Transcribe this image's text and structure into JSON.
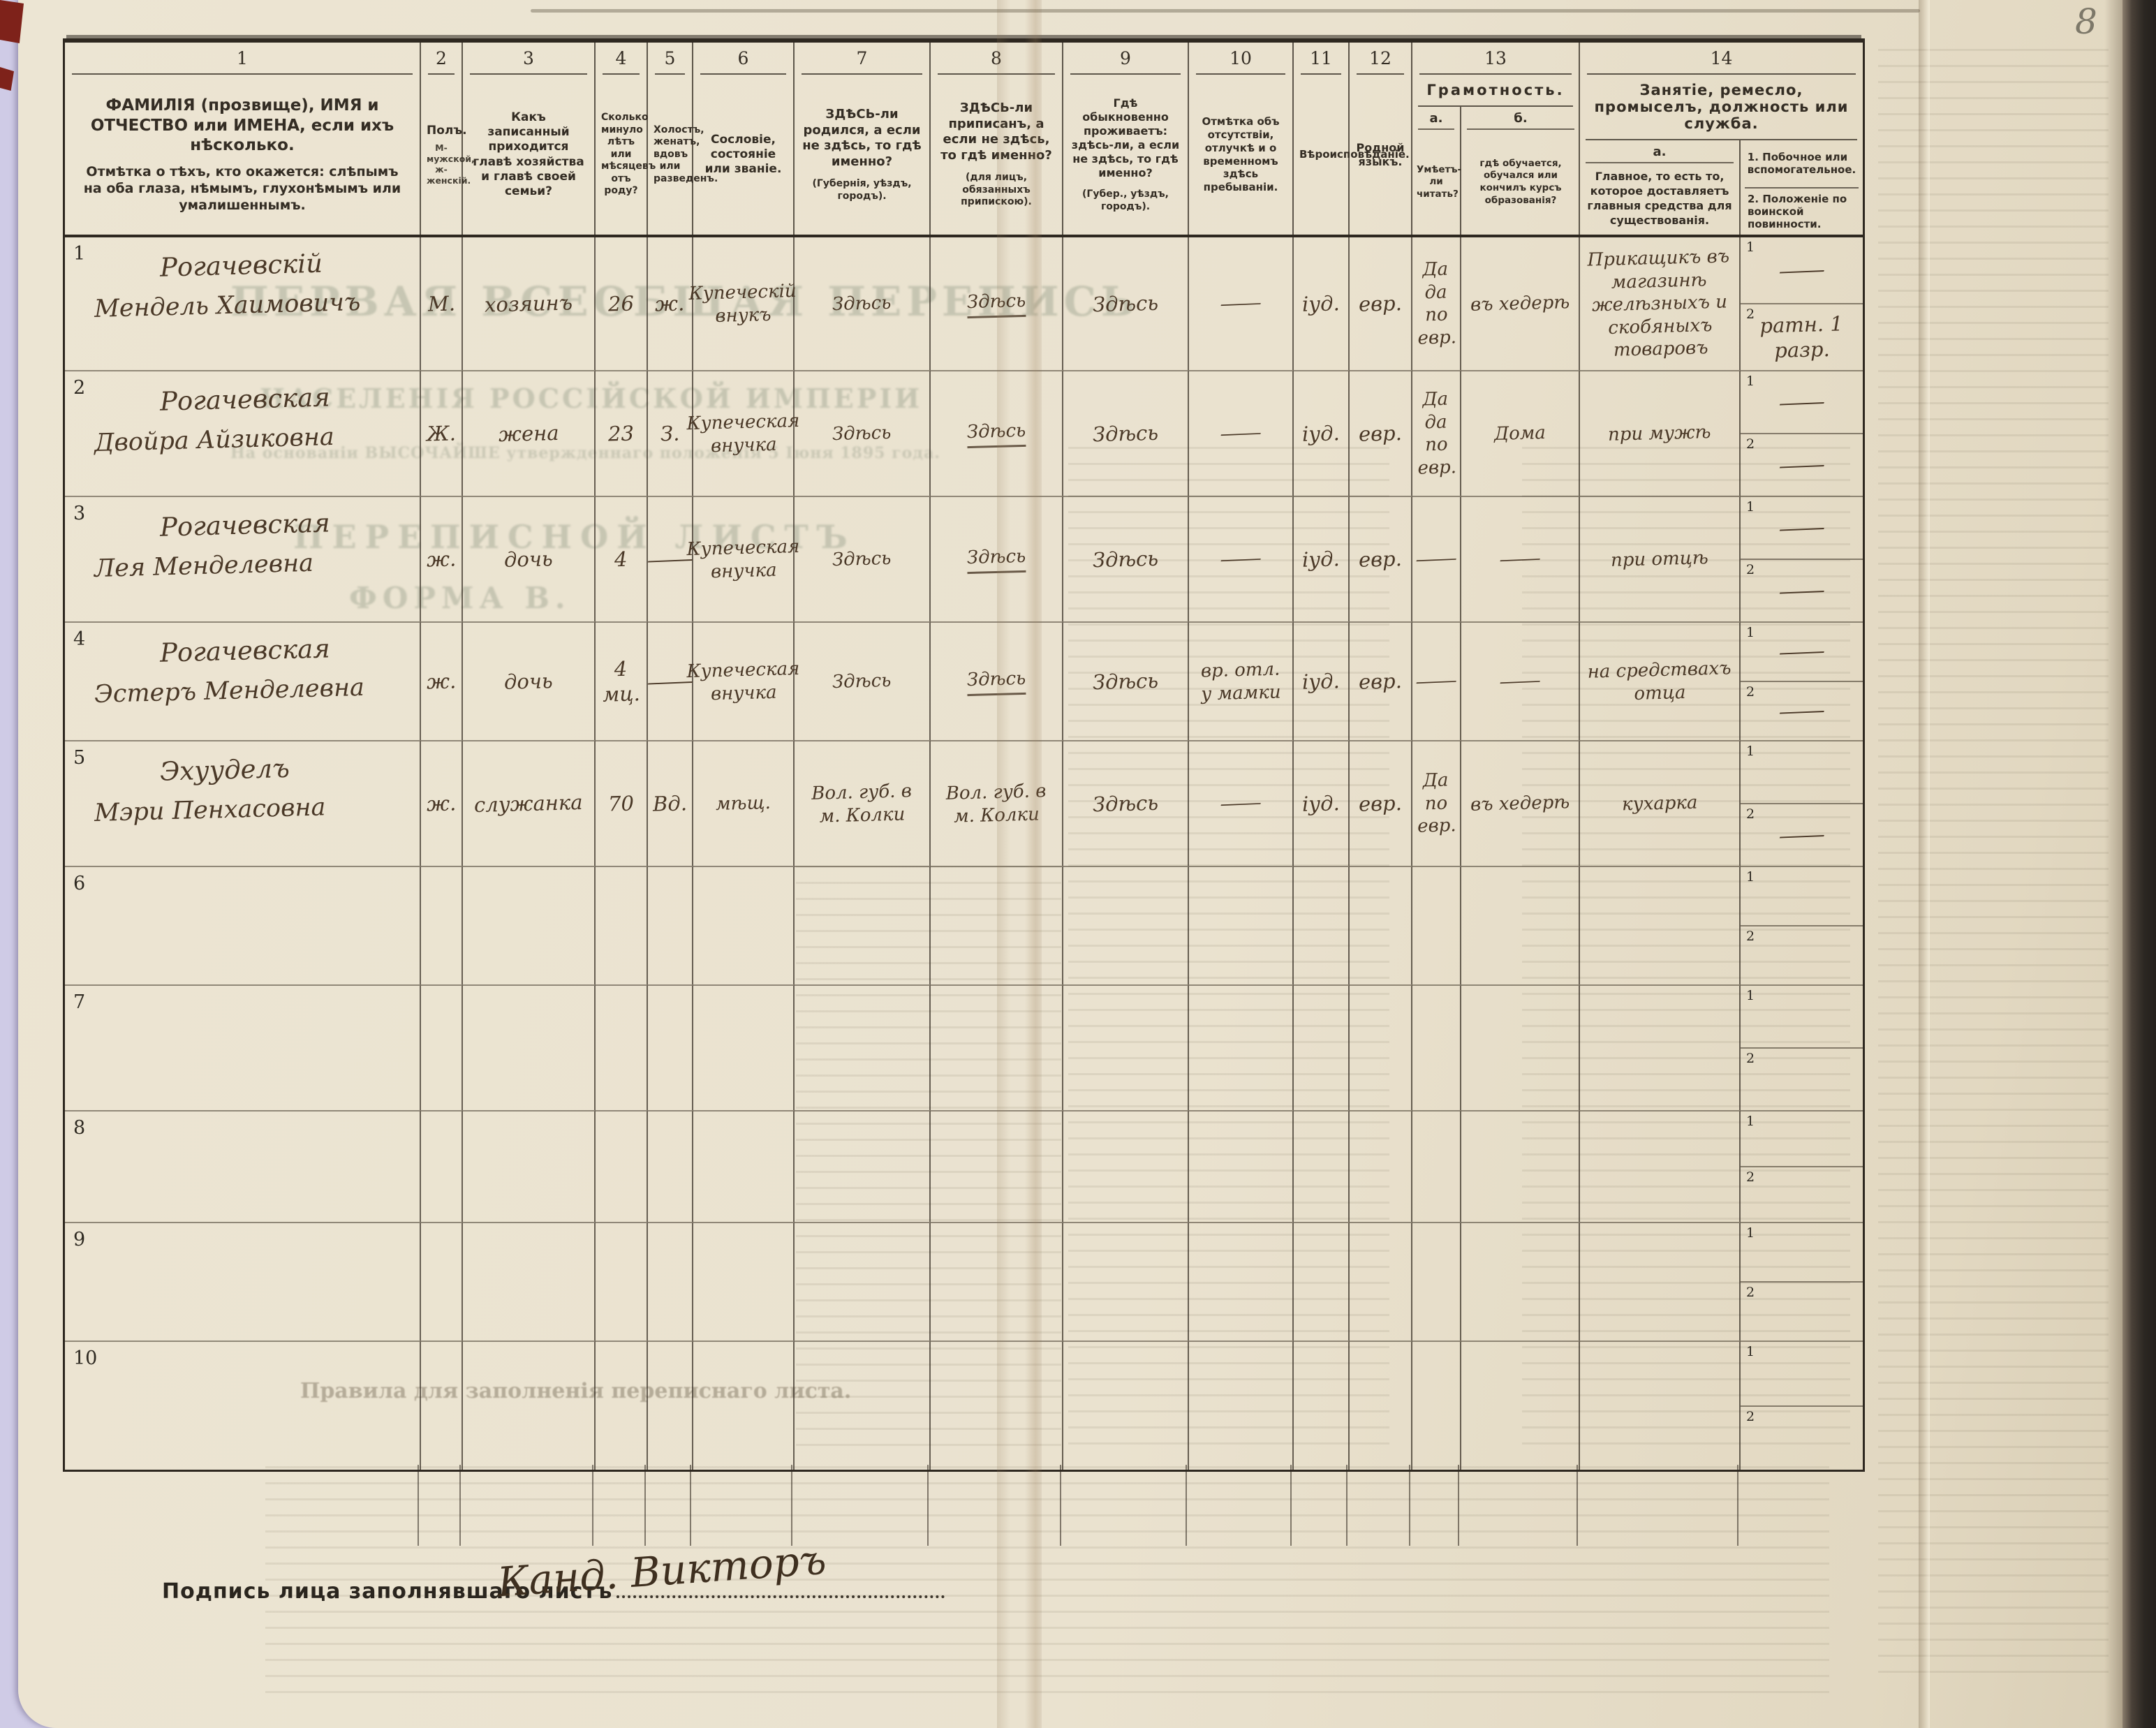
{
  "page": {
    "number": "8"
  },
  "signature": {
    "label": "Подпись лица заполнявшаго листъ",
    "value": "Канд. Викторъ"
  },
  "ghost_titles": {
    "line1": "ПЕРВАЯ ВСЕОБЩАЯ ПЕРЕПИСЬ",
    "line2": "НАСЕЛЕНІЯ РОССІЙСКОЙ ИМПЕРІИ",
    "line3": "На основаніи ВЫСОЧАЙШЕ утвержденнаго положенія 5 Іюня 1895 года.",
    "line4": "ПЕРЕПИСНОЙ ЛИСТЪ",
    "line5": "ФОРМА В.",
    "rules": "Правила для заполненія переписнаго листа."
  },
  "colors": {
    "paper": "#eae2cf",
    "print_ink": "#342d24",
    "handwriting_ink": "#4a3827",
    "binding": "#2b2722",
    "scan_margin": "#cfcbe6",
    "corner_mark": "#7e221a"
  },
  "table": {
    "subrow_labels": [
      "1",
      "2"
    ],
    "columns": [
      {
        "num": "1",
        "label": "ФАМИЛІЯ (прозвище), ИМЯ и ОТЧЕСТВО или ИМЕНА, если ихъ нѣсколько.",
        "label2": "Отмѣтка о тѣхъ, кто окажется: слѣпымъ на оба глаза, нѣмымъ, глухонѣмымъ или умалишеннымъ."
      },
      {
        "num": "2",
        "label": "Полъ.",
        "label2": "М-мужской, ж-женскій."
      },
      {
        "num": "3",
        "label": "Какъ записанный приходится главѣ хозяйства и главѣ своей семьи?"
      },
      {
        "num": "4",
        "label": "Сколько минуло лѣтъ или мѣсяцевъ отъ роду?"
      },
      {
        "num": "5",
        "label": "Холостъ, женатъ, вдовъ или разведенъ."
      },
      {
        "num": "6",
        "label": "Сословіе, состояніе или званіе."
      },
      {
        "num": "7",
        "label": "ЗДѢСЬ-ли родился, а если не здѣсь, то гдѣ именно?",
        "label2": "(Губернія, уѣздъ, городъ)."
      },
      {
        "num": "8",
        "label": "ЗДѢСЬ-ли приписанъ, а если не здѣсь, то гдѣ именно?",
        "label2": "(для лицъ, обязанныхъ припискою)."
      },
      {
        "num": "9",
        "label": "Гдѣ обыкновенно проживаетъ: здѣсь-ли, а если не здѣсь, то гдѣ именно?",
        "label2": "(Губер., уѣздъ, городъ)."
      },
      {
        "num": "10",
        "label": "Отмѣтка объ отсутствіи, отлучкѣ и о временномъ здѣсь пребываніи."
      },
      {
        "num": "11",
        "label": "Вѣроисповѣданіе."
      },
      {
        "num": "12",
        "label": "Родной языкъ."
      },
      {
        "num": "13",
        "label": "Грамотность.",
        "sub_a": "а.",
        "sub_a_label": "Умѣетъ-ли читать?",
        "sub_b": "б.",
        "sub_b_label": "гдѣ обучается, обучался или кончилъ курсъ образованія?"
      },
      {
        "num": "14",
        "label": "Занятіе, ремесло, промыселъ, должность или служба.",
        "sub_a": "а.",
        "sub_a_label": "Главное, то есть то, которое доставляетъ главныя средства для существованія.",
        "sub_b1": "1.  Побочное или вспомогательное.",
        "sub_b2": "2.  Положеніе по воинской повинности."
      }
    ],
    "rows": [
      {
        "n": "1",
        "name": "Рогачевскій",
        "name2": "Мендель Хаимовичъ",
        "sex": "М.",
        "relation": "хозяинъ",
        "age": "26",
        "marital": "ж.",
        "estate": "Купеческій внукъ",
        "born": "Здѣсь",
        "registered": "Здѣсь",
        "resides": "Здѣсь",
        "absence": "—",
        "religion": "іуд.",
        "language": "евр.",
        "lit_a": "Да да по евр.",
        "lit_b": "въ хедерѣ",
        "occupation": "Прикащикъ въ магазинѣ желѣзныхъ и скобяныхъ товаровъ",
        "side1": "—",
        "side2": "ратн. 1 разр."
      },
      {
        "n": "2",
        "name": "Рогачевская",
        "name2": "Двойра Айзиковна",
        "sex": "Ж.",
        "relation": "жена",
        "age": "23",
        "marital": "З.",
        "estate": "Купеческая внучка",
        "born": "Здѣсь",
        "registered": "Здѣсь",
        "resides": "Здѣсь",
        "absence": "—",
        "religion": "іуд.",
        "language": "евр.",
        "lit_a": "Да да по евр.",
        "lit_b": "Дома",
        "occupation": "при мужѣ",
        "side1": "—",
        "side2": "—"
      },
      {
        "n": "3",
        "name": "Рогачевская",
        "name2": "Лея Менделевна",
        "sex": "ж.",
        "relation": "дочь",
        "age": "4",
        "marital": "—",
        "estate": "Купеческая внучка",
        "born": "Здѣсь",
        "registered": "Здѣсь",
        "resides": "Здѣсь",
        "absence": "—",
        "religion": "іуд.",
        "language": "евр.",
        "lit_a": "—",
        "lit_b": "—",
        "occupation": "при отцѣ",
        "side1": "—",
        "side2": "—"
      },
      {
        "n": "4",
        "name": "Рогачевская",
        "name2": "Эстеръ Менделевна",
        "sex": "ж.",
        "relation": "дочь",
        "age": "4 мц.",
        "marital": "—",
        "estate": "Купеческая внучка",
        "born": "Здѣсь",
        "registered": "Здѣсь",
        "resides": "Здѣсь",
        "absence": "вр. отл. у мамки",
        "religion": "іуд.",
        "language": "евр.",
        "lit_a": "—",
        "lit_b": "—",
        "occupation": "на средствахъ отца",
        "side1": "—",
        "side2": "—"
      },
      {
        "n": "5",
        "name": "Эхууделъ",
        "name2": "Мэри Пенхасовна",
        "sex": "ж.",
        "relation": "служанка",
        "age": "70",
        "marital": "Вд.",
        "estate": "мѣщ.",
        "born": "Вол. губ. в м. Колки",
        "registered": "Вол. губ. в м. Колки",
        "resides": "Здѣсь",
        "absence": "—",
        "religion": "іуд.",
        "language": "евр.",
        "lit_a": "Да по евр.",
        "lit_b": "въ хедерѣ",
        "occupation": "кухарка",
        "side1": "",
        "side2": "—"
      },
      {
        "n": "6"
      },
      {
        "n": "7"
      },
      {
        "n": "8"
      },
      {
        "n": "9"
      },
      {
        "n": "10"
      }
    ]
  }
}
